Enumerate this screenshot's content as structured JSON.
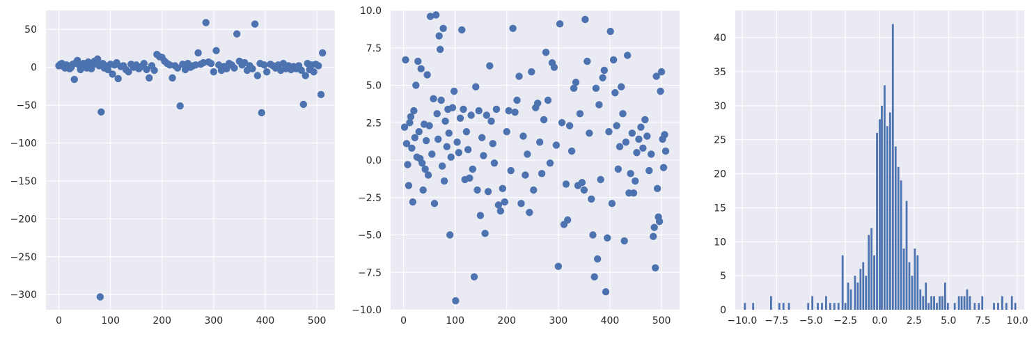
{
  "colors": {
    "panel_bg": "#eaeaf2",
    "grid": "#ffffff",
    "marker": "#4c72b0",
    "text": "#262626"
  },
  "chart_data": [
    {
      "type": "scatter",
      "title": "",
      "xlabel": "",
      "ylabel": "",
      "xlim": [
        -25,
        535
      ],
      "ylim": [
        -320,
        75
      ],
      "xticks": [
        0,
        100,
        200,
        300,
        400,
        500
      ],
      "yticks": [
        50,
        0,
        -50,
        -100,
        -150,
        -200,
        -250,
        -300
      ],
      "grid": true,
      "points": [
        [
          0,
          2
        ],
        [
          3,
          4
        ],
        [
          6,
          5
        ],
        [
          9,
          1
        ],
        [
          12,
          -1
        ],
        [
          15,
          3
        ],
        [
          18,
          2
        ],
        [
          21,
          -2
        ],
        [
          24,
          0
        ],
        [
          27,
          4
        ],
        [
          30,
          -16
        ],
        [
          33,
          6
        ],
        [
          36,
          9
        ],
        [
          39,
          3
        ],
        [
          42,
          -3
        ],
        [
          45,
          2
        ],
        [
          48,
          5
        ],
        [
          51,
          1
        ],
        [
          54,
          -1
        ],
        [
          57,
          7
        ],
        [
          60,
          4
        ],
        [
          63,
          -2
        ],
        [
          66,
          3
        ],
        [
          69,
          8
        ],
        [
          72,
          6
        ],
        [
          75,
          11
        ],
        [
          78,
          2
        ],
        [
          80,
          -303
        ],
        [
          82,
          -59
        ],
        [
          85,
          5
        ],
        [
          88,
          -1
        ],
        [
          91,
          2
        ],
        [
          95,
          -3
        ],
        [
          100,
          4
        ],
        [
          104,
          -9
        ],
        [
          108,
          3
        ],
        [
          112,
          6
        ],
        [
          115,
          -15
        ],
        [
          120,
          1
        ],
        [
          125,
          2
        ],
        [
          130,
          -3
        ],
        [
          135,
          -6
        ],
        [
          140,
          4
        ],
        [
          145,
          0
        ],
        [
          150,
          3
        ],
        [
          155,
          -2
        ],
        [
          160,
          1
        ],
        [
          165,
          5
        ],
        [
          170,
          -3
        ],
        [
          175,
          -14
        ],
        [
          180,
          2
        ],
        [
          185,
          -4
        ],
        [
          190,
          17
        ],
        [
          195,
          14
        ],
        [
          200,
          13
        ],
        [
          205,
          8
        ],
        [
          210,
          5
        ],
        [
          215,
          3
        ],
        [
          220,
          -14
        ],
        [
          225,
          2
        ],
        [
          230,
          -1
        ],
        [
          235,
          -51
        ],
        [
          240,
          4
        ],
        [
          245,
          -3
        ],
        [
          250,
          5
        ],
        [
          255,
          0
        ],
        [
          260,
          2
        ],
        [
          265,
          3
        ],
        [
          270,
          19
        ],
        [
          275,
          4
        ],
        [
          280,
          6
        ],
        [
          285,
          59
        ],
        [
          290,
          7
        ],
        [
          295,
          5
        ],
        [
          300,
          -6
        ],
        [
          305,
          22
        ],
        [
          310,
          3
        ],
        [
          315,
          -4
        ],
        [
          320,
          1
        ],
        [
          325,
          -2
        ],
        [
          330,
          5
        ],
        [
          335,
          3
        ],
        [
          340,
          -1
        ],
        [
          345,
          44
        ],
        [
          350,
          8
        ],
        [
          355,
          3
        ],
        [
          360,
          6
        ],
        [
          365,
          -4
        ],
        [
          370,
          2
        ],
        [
          375,
          -2
        ],
        [
          380,
          57
        ],
        [
          385,
          -11
        ],
        [
          390,
          5
        ],
        [
          393,
          -60
        ],
        [
          398,
          3
        ],
        [
          403,
          -6
        ],
        [
          410,
          4
        ],
        [
          415,
          2
        ],
        [
          420,
          -1
        ],
        [
          425,
          3
        ],
        [
          430,
          -4
        ],
        [
          435,
          5
        ],
        [
          440,
          -2
        ],
        [
          445,
          2
        ],
        [
          450,
          -3
        ],
        [
          455,
          1
        ],
        [
          460,
          -2
        ],
        [
          465,
          2
        ],
        [
          470,
          -4
        ],
        [
          474,
          -49
        ],
        [
          478,
          -11
        ],
        [
          482,
          5
        ],
        [
          486,
          -3
        ],
        [
          490,
          3
        ],
        [
          494,
          -6
        ],
        [
          498,
          4
        ],
        [
          503,
          2
        ],
        [
          508,
          -36
        ],
        [
          511,
          19
        ]
      ]
    },
    {
      "type": "scatter",
      "title": "",
      "xlabel": "",
      "ylabel": "",
      "xlim": [
        -25,
        535
      ],
      "ylim": [
        -10,
        10
      ],
      "xticks": [
        0,
        100,
        200,
        300,
        400,
        500
      ],
      "yticks": [
        10.0,
        7.5,
        5.0,
        2.5,
        0.0,
        -2.5,
        -5.0,
        -7.5,
        -10.0
      ],
      "grid": true,
      "points": [
        [
          2,
          2.2
        ],
        [
          4,
          6.7
        ],
        [
          6,
          1.1
        ],
        [
          8,
          -0.3
        ],
        [
          10,
          -1.7
        ],
        [
          12,
          2.5
        ],
        [
          14,
          2.9
        ],
        [
          16,
          0.8
        ],
        [
          18,
          -2.8
        ],
        [
          20,
          3.3
        ],
        [
          22,
          1.5
        ],
        [
          24,
          5.0
        ],
        [
          26,
          0.2
        ],
        [
          28,
          6.6
        ],
        [
          30,
          1.9
        ],
        [
          32,
          0.1
        ],
        [
          34,
          6.1
        ],
        [
          36,
          -0.2
        ],
        [
          38,
          -2.0
        ],
        [
          40,
          2.4
        ],
        [
          42,
          -0.6
        ],
        [
          44,
          1.3
        ],
        [
          46,
          5.7
        ],
        [
          48,
          -1.0
        ],
        [
          50,
          2.3
        ],
        [
          52,
          9.6
        ],
        [
          55,
          0.4
        ],
        [
          58,
          4.1
        ],
        [
          60,
          -2.9
        ],
        [
          63,
          9.7
        ],
        [
          65,
          3.1
        ],
        [
          67,
          1.4
        ],
        [
          69,
          8.3
        ],
        [
          71,
          7.4
        ],
        [
          73,
          4.0
        ],
        [
          75,
          -0.4
        ],
        [
          77,
          8.8
        ],
        [
          79,
          -1.4
        ],
        [
          81,
          2.6
        ],
        [
          84,
          0.9
        ],
        [
          86,
          3.4
        ],
        [
          88,
          1.8
        ],
        [
          90,
          -5.0
        ],
        [
          92,
          0.2
        ],
        [
          95,
          3.5
        ],
        [
          98,
          4.6
        ],
        [
          101,
          -9.4
        ],
        [
          104,
          1.2
        ],
        [
          107,
          0.5
        ],
        [
          110,
          2.8
        ],
        [
          113,
          8.7
        ],
        [
          116,
          3.4
        ],
        [
          119,
          -1.3
        ],
        [
          122,
          1.9
        ],
        [
          125,
          0.7
        ],
        [
          128,
          -1.2
        ],
        [
          131,
          3.0
        ],
        [
          134,
          -0.6
        ],
        [
          137,
          -7.8
        ],
        [
          140,
          4.9
        ],
        [
          143,
          -2.0
        ],
        [
          146,
          3.3
        ],
        [
          149,
          -3.7
        ],
        [
          152,
          1.5
        ],
        [
          155,
          0.3
        ],
        [
          158,
          -4.9
        ],
        [
          161,
          3.0
        ],
        [
          164,
          -2.1
        ],
        [
          167,
          6.3
        ],
        [
          170,
          2.6
        ],
        [
          173,
          1.1
        ],
        [
          176,
          -0.2
        ],
        [
          180,
          3.4
        ],
        [
          184,
          -3.0
        ],
        [
          188,
          -3.4
        ],
        [
          192,
          -1.9
        ],
        [
          196,
          -2.8
        ],
        [
          200,
          1.9
        ],
        [
          204,
          3.3
        ],
        [
          208,
          -0.7
        ],
        [
          212,
          8.8
        ],
        [
          216,
          3.2
        ],
        [
          220,
          4.0
        ],
        [
          224,
          5.6
        ],
        [
          228,
          -2.9
        ],
        [
          232,
          1.6
        ],
        [
          236,
          -1.0
        ],
        [
          240,
          0.4
        ],
        [
          244,
          -3.5
        ],
        [
          248,
          5.9
        ],
        [
          252,
          -2.0
        ],
        [
          256,
          3.5
        ],
        [
          260,
          3.8
        ],
        [
          264,
          1.2
        ],
        [
          268,
          -0.9
        ],
        [
          272,
          2.7
        ],
        [
          276,
          7.2
        ],
        [
          280,
          4.0
        ],
        [
          284,
          -0.2
        ],
        [
          288,
          6.5
        ],
        [
          292,
          6.2
        ],
        [
          296,
          1.0
        ],
        [
          300,
          -7.1
        ],
        [
          303,
          9.1
        ],
        [
          307,
          2.5
        ],
        [
          311,
          -4.3
        ],
        [
          315,
          -1.6
        ],
        [
          318,
          -4.0
        ],
        [
          322,
          2.3
        ],
        [
          326,
          0.6
        ],
        [
          330,
          4.8
        ],
        [
          334,
          5.2
        ],
        [
          338,
          -1.7
        ],
        [
          342,
          3.1
        ],
        [
          346,
          -1.5
        ],
        [
          350,
          -2.0
        ],
        [
          352,
          9.4
        ],
        [
          356,
          6.6
        ],
        [
          360,
          1.8
        ],
        [
          364,
          -2.6
        ],
        [
          367,
          -5.0
        ],
        [
          370,
          -7.8
        ],
        [
          373,
          4.8
        ],
        [
          376,
          -6.6
        ],
        [
          379,
          3.7
        ],
        [
          382,
          -1.3
        ],
        [
          386,
          5.5
        ],
        [
          389,
          6.0
        ],
        [
          392,
          -8.8
        ],
        [
          395,
          -5.2
        ],
        [
          398,
          1.9
        ],
        [
          401,
          8.6
        ],
        [
          404,
          -2.9
        ],
        [
          407,
          6.7
        ],
        [
          410,
          4.5
        ],
        [
          413,
          2.3
        ],
        [
          416,
          -0.6
        ],
        [
          419,
          0.9
        ],
        [
          422,
          4.9
        ],
        [
          425,
          3.1
        ],
        [
          428,
          -5.4
        ],
        [
          431,
          1.2
        ],
        [
          434,
          7.0
        ],
        [
          437,
          -2.2
        ],
        [
          440,
          -0.9
        ],
        [
          443,
          1.8
        ],
        [
          446,
          -2.2
        ],
        [
          449,
          -1.4
        ],
        [
          452,
          0.5
        ],
        [
          456,
          1.4
        ],
        [
          460,
          2.2
        ],
        [
          464,
          0.8
        ],
        [
          468,
          2.7
        ],
        [
          472,
          1.6
        ],
        [
          476,
          -0.7
        ],
        [
          480,
          0.4
        ],
        [
          484,
          -5.1
        ],
        [
          486,
          -4.5
        ],
        [
          488,
          -7.2
        ],
        [
          490,
          5.6
        ],
        [
          492,
          -1.9
        ],
        [
          494,
          -3.8
        ],
        [
          496,
          -4.1
        ],
        [
          498,
          4.6
        ],
        [
          500,
          5.9
        ],
        [
          502,
          1.4
        ],
        [
          504,
          -0.5
        ],
        [
          506,
          1.7
        ],
        [
          508,
          0.6
        ]
      ]
    },
    {
      "type": "bar",
      "title": "",
      "xlabel": "",
      "ylabel": "",
      "xlim": [
        -10.5,
        10.5
      ],
      "ylim": [
        0,
        44
      ],
      "xticks": [
        -10.0,
        -7.5,
        -5.0,
        -2.5,
        0.0,
        2.5,
        5.0,
        7.5,
        10.0
      ],
      "yticks": [
        0,
        5,
        10,
        15,
        20,
        25,
        30,
        35,
        40
      ],
      "grid": true,
      "bin_width": 0.14,
      "bins": [
        [
          -9.8,
          1
        ],
        [
          -9.2,
          1
        ],
        [
          -7.9,
          2
        ],
        [
          -7.3,
          1
        ],
        [
          -7.0,
          1
        ],
        [
          -6.6,
          1
        ],
        [
          -5.2,
          1
        ],
        [
          -4.9,
          2
        ],
        [
          -4.5,
          1
        ],
        [
          -4.2,
          1
        ],
        [
          -3.9,
          2
        ],
        [
          -3.6,
          1
        ],
        [
          -3.3,
          1
        ],
        [
          -3.0,
          1
        ],
        [
          -2.7,
          8
        ],
        [
          -2.5,
          1
        ],
        [
          -2.3,
          4
        ],
        [
          -2.1,
          3
        ],
        [
          -1.8,
          5
        ],
        [
          -1.6,
          4
        ],
        [
          -1.4,
          6
        ],
        [
          -1.2,
          7
        ],
        [
          -1.0,
          5
        ],
        [
          -0.8,
          11
        ],
        [
          -0.6,
          12
        ],
        [
          -0.4,
          8
        ],
        [
          -0.2,
          26
        ],
        [
          0.0,
          28
        ],
        [
          0.15,
          30
        ],
        [
          0.35,
          33
        ],
        [
          0.55,
          27
        ],
        [
          0.75,
          29
        ],
        [
          0.95,
          42
        ],
        [
          1.15,
          24
        ],
        [
          1.35,
          21
        ],
        [
          1.55,
          19
        ],
        [
          1.75,
          9
        ],
        [
          1.95,
          16
        ],
        [
          2.15,
          7
        ],
        [
          2.35,
          5
        ],
        [
          2.55,
          9
        ],
        [
          2.75,
          8
        ],
        [
          2.95,
          3
        ],
        [
          3.15,
          2
        ],
        [
          3.35,
          4
        ],
        [
          3.55,
          1
        ],
        [
          3.75,
          2
        ],
        [
          3.95,
          2
        ],
        [
          4.15,
          1
        ],
        [
          4.35,
          2
        ],
        [
          4.55,
          2
        ],
        [
          4.75,
          4
        ],
        [
          4.95,
          1
        ],
        [
          5.45,
          1
        ],
        [
          5.75,
          2
        ],
        [
          5.95,
          2
        ],
        [
          6.15,
          2
        ],
        [
          6.35,
          3
        ],
        [
          6.55,
          2
        ],
        [
          6.9,
          1
        ],
        [
          7.2,
          1
        ],
        [
          7.45,
          2
        ],
        [
          8.3,
          1
        ],
        [
          8.6,
          1
        ],
        [
          8.9,
          2
        ],
        [
          9.2,
          1
        ],
        [
          9.6,
          2
        ],
        [
          9.85,
          1
        ]
      ]
    }
  ]
}
